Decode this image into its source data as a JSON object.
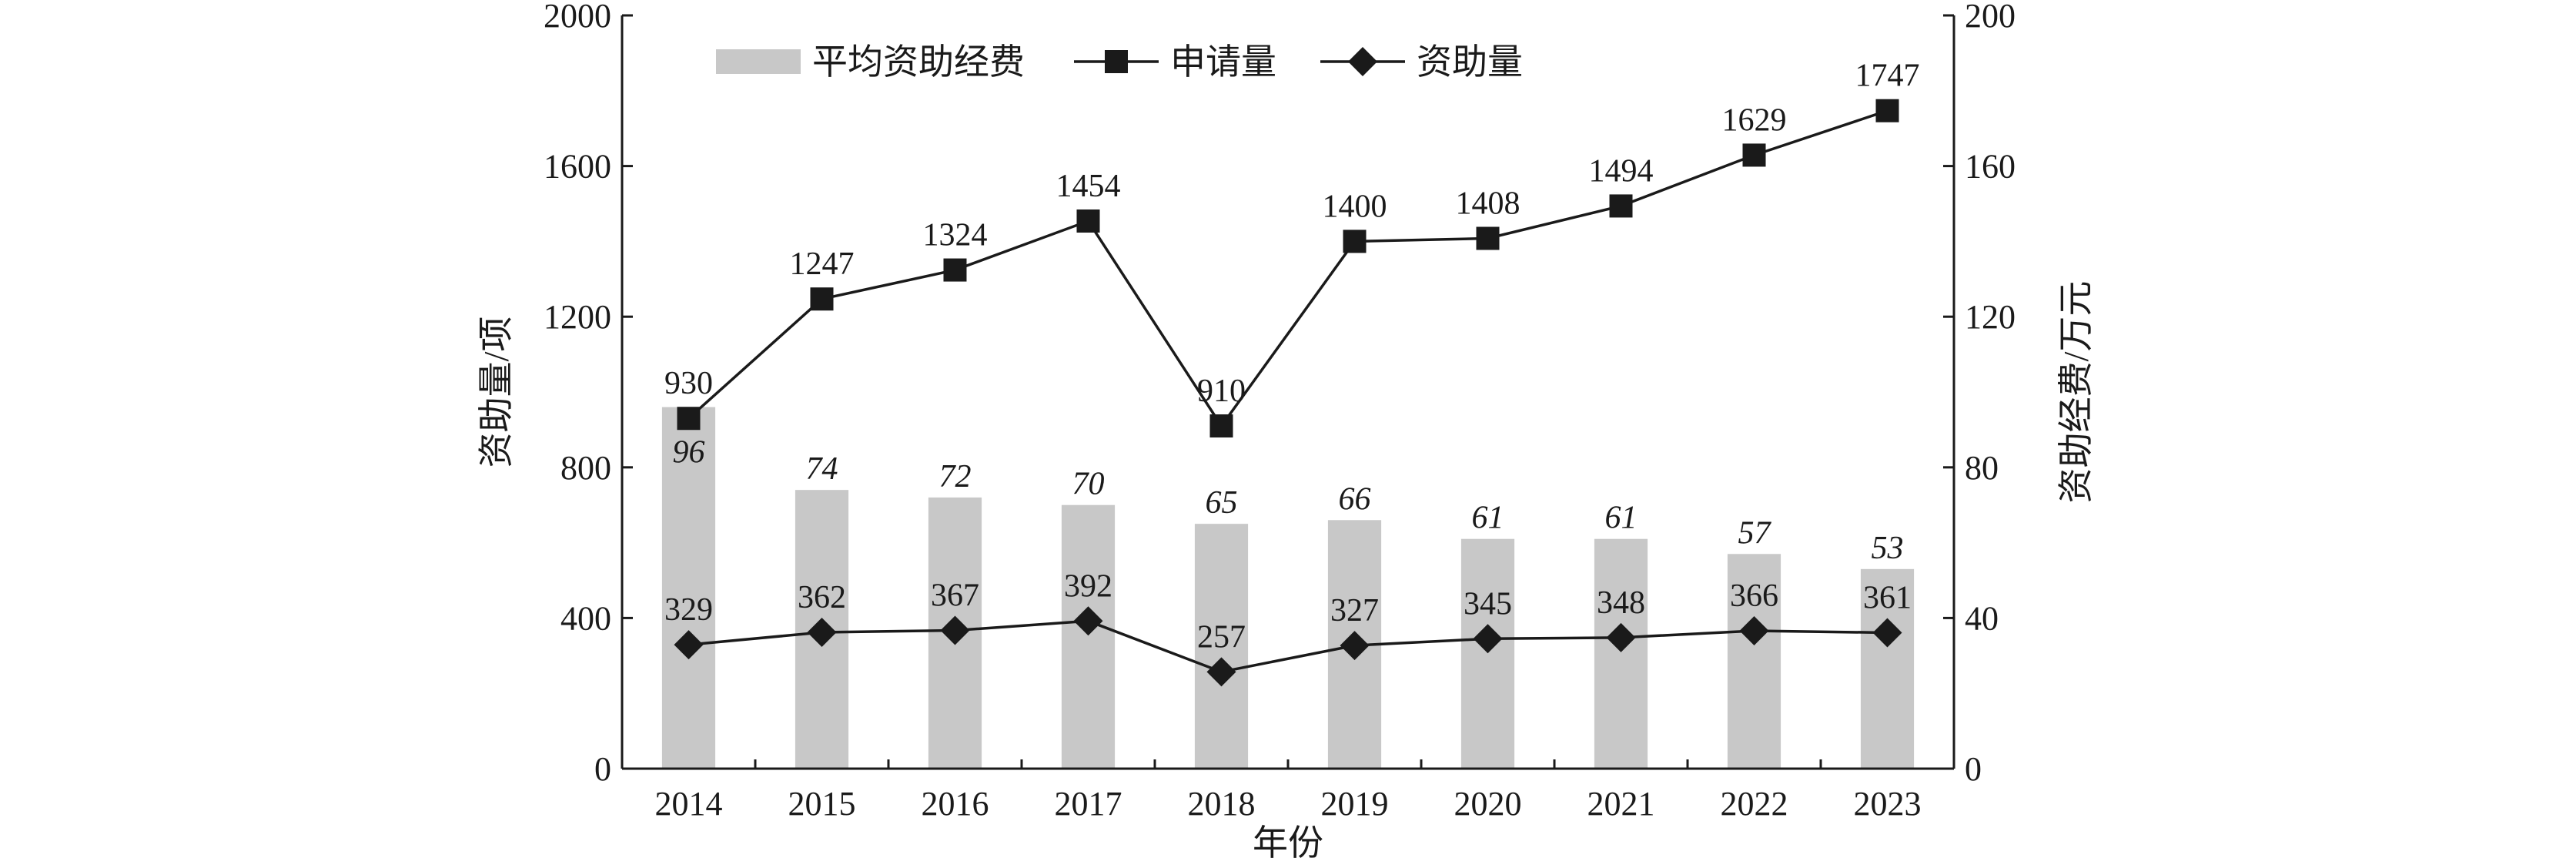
{
  "chart_data": {
    "type": "bar",
    "categories": [
      "2014",
      "2015",
      "2016",
      "2017",
      "2018",
      "2019",
      "2020",
      "2021",
      "2022",
      "2023"
    ],
    "xlabel": "年份",
    "ylabel_left": "资助量/项",
    "ylabel_right": "资助经费/万元",
    "ylim_left": [
      0,
      2000
    ],
    "ylim_right": [
      0,
      200
    ],
    "yticks_left": [
      "0",
      "400",
      "800",
      "1200",
      "1600",
      "2000"
    ],
    "yticks_right": [
      "0",
      "40",
      "80",
      "120",
      "160",
      "200"
    ],
    "legend_position": "top-left",
    "grid": false,
    "series": [
      {
        "name": "平均资助经费",
        "type": "bar",
        "axis": "right",
        "color": "#c8c8c8",
        "values": [
          96,
          74,
          72,
          70,
          65,
          66,
          61,
          61,
          57,
          53
        ],
        "labels": [
          "96",
          "74",
          "72",
          "70",
          "65",
          "66",
          "61",
          "61",
          "57",
          "53"
        ]
      },
      {
        "name": "申请量",
        "type": "line",
        "marker": "square",
        "axis": "left",
        "color": "#1a1a1a",
        "values": [
          930,
          1247,
          1324,
          1454,
          910,
          1400,
          1408,
          1494,
          1629,
          1747
        ],
        "labels": [
          "930",
          "1247",
          "1324",
          "1454",
          "910",
          "1400",
          "1408",
          "1494",
          "1629",
          "1747"
        ]
      },
      {
        "name": "资助量",
        "type": "line",
        "marker": "diamond",
        "axis": "left",
        "color": "#1a1a1a",
        "values": [
          329,
          362,
          367,
          392,
          257,
          327,
          345,
          348,
          366,
          361
        ],
        "labels": [
          "329",
          "362",
          "367",
          "392",
          "257",
          "327",
          "345",
          "348",
          "366",
          "361"
        ]
      }
    ]
  }
}
